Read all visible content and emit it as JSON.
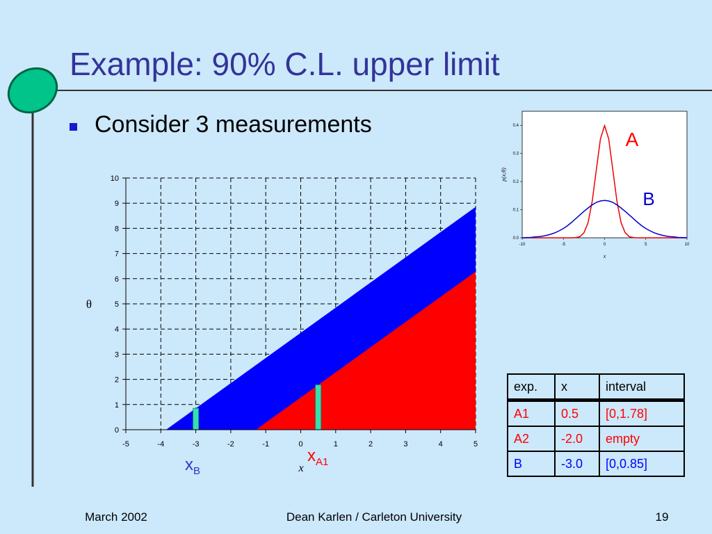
{
  "title": "Example: 90% C.L. upper limit",
  "bullets": [
    "Consider 3 measurements"
  ],
  "chart_data": [
    {
      "type": "area",
      "xlabel": "x",
      "ylabel": "θ",
      "xlim": [
        -5,
        5
      ],
      "ylim": [
        0,
        10
      ],
      "xticks": [
        -5,
        -4,
        -3,
        -2,
        -1,
        0,
        1,
        2,
        3,
        4,
        5
      ],
      "yticks": [
        0,
        1,
        2,
        3,
        4,
        5,
        6,
        7,
        8,
        9,
        10
      ],
      "grid": true,
      "series": [
        {
          "color": "#0000ff",
          "x": [
            -3.85,
            5
          ],
          "values": [
            0,
            8.85
          ]
        },
        {
          "color": "#ff0000",
          "x": [
            -1.28,
            5
          ],
          "values": [
            0,
            6.28
          ]
        }
      ],
      "bars": {
        "color": "#33e0b0",
        "x": [
          -3,
          0.5
        ],
        "values": [
          0.85,
          1.78
        ]
      },
      "annotations": [
        {
          "text": "x",
          "sub": "B",
          "color": "#3333cc"
        },
        {
          "text": "x",
          "sub": "A1",
          "color": "#ff0000"
        }
      ]
    },
    {
      "type": "line",
      "xlabel": "x",
      "ylabel": "p(x;θ)",
      "xlim": [
        -10,
        10
      ],
      "ylim": [
        0,
        0.45
      ],
      "xticks": [
        -10,
        -5,
        0,
        5,
        10
      ],
      "yticks": [
        {
          "value": 0,
          "label": "0.0"
        },
        {
          "value": 0.1,
          "label": "0.1"
        },
        {
          "value": 0.2,
          "label": "0.2"
        },
        {
          "value": 0.3,
          "label": "0.3"
        },
        {
          "value": 0.4,
          "label": "0.4"
        }
      ],
      "x": [
        -10,
        -9.5,
        -9,
        -8.5,
        -8,
        -7.5,
        -7,
        -6.5,
        -6,
        -5.5,
        -5,
        -4.5,
        -4,
        -3.5,
        -3,
        -2.5,
        -2,
        -1.5,
        -1,
        -0.5,
        0,
        0.5,
        1,
        1.5,
        2,
        2.5,
        3,
        3.5,
        4,
        4.5,
        5,
        5.5,
        6,
        6.5,
        7,
        7.5,
        8,
        8.5,
        9,
        9.5,
        10
      ],
      "series": [
        {
          "color": "#ee0000",
          "values": [
            0,
            0,
            0,
            0,
            0,
            0,
            0,
            0,
            0,
            0,
            0,
            0,
            0,
            0.001,
            0.004,
            0.018,
            0.054,
            0.13,
            0.242,
            0.352,
            0.399,
            0.352,
            0.242,
            0.13,
            0.054,
            0.018,
            0.004,
            0.001,
            0,
            0,
            0,
            0,
            0,
            0,
            0,
            0,
            0,
            0,
            0,
            0,
            0
          ]
        },
        {
          "color": "#0000cc",
          "values": [
            0.0,
            0.001,
            0.001,
            0.003,
            0.004,
            0.006,
            0.009,
            0.013,
            0.018,
            0.025,
            0.033,
            0.043,
            0.055,
            0.068,
            0.081,
            0.094,
            0.106,
            0.117,
            0.126,
            0.131,
            0.133,
            0.131,
            0.126,
            0.117,
            0.106,
            0.094,
            0.081,
            0.068,
            0.055,
            0.043,
            0.033,
            0.025,
            0.018,
            0.013,
            0.009,
            0.006,
            0.004,
            0.003,
            0.001,
            0.001,
            0.0
          ]
        }
      ],
      "annotations": [
        {
          "text": "A",
          "color": "#ff0000"
        },
        {
          "text": "B",
          "color": "#0000cc"
        }
      ]
    }
  ],
  "table": {
    "header": [
      "exp.",
      "x",
      "interval"
    ],
    "rows": [
      [
        "A1",
        "0.5",
        "[0,1.78]"
      ],
      [
        "A2",
        "-2.0",
        "empty"
      ],
      [
        "B",
        "-3.0",
        "[0,0.85]"
      ]
    ],
    "row_colors": [
      "#ff0000",
      "#ff0000",
      "#0000ff"
    ]
  },
  "footer": {
    "left": "March 2002",
    "center": "Dean Karlen / Carleton University",
    "right": "19"
  }
}
